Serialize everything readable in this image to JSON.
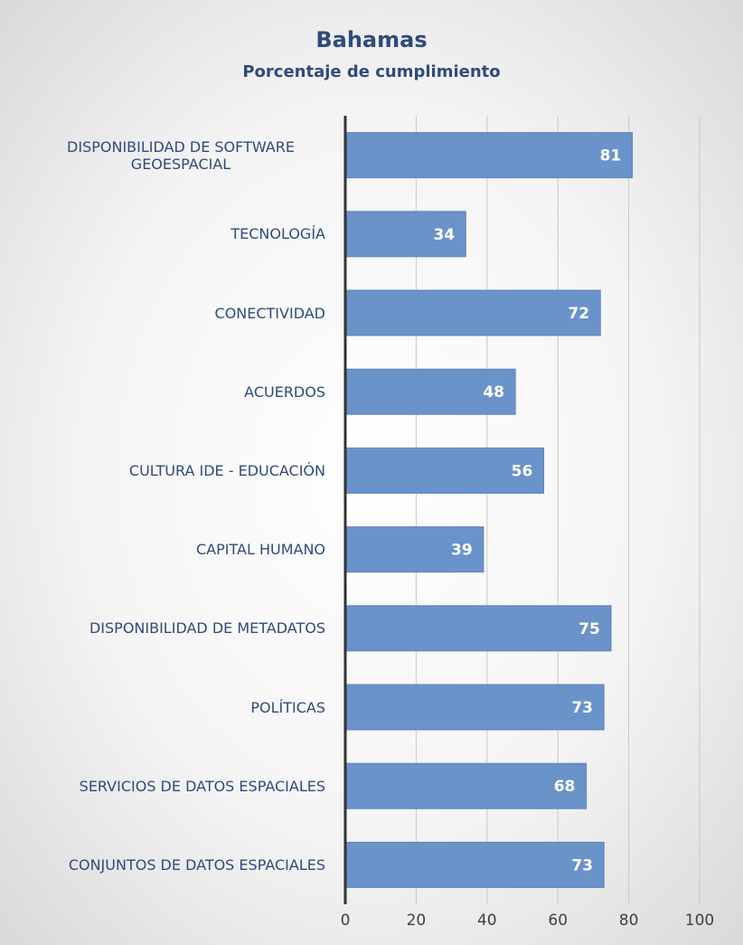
{
  "chart_data": {
    "type": "barh",
    "title": "Bahamas",
    "subtitle": "Porcentaje de cumplimiento",
    "categories": [
      "DISPONIBILIDAD DE SOFTWARE GEOESPACIAL",
      "TECNOLOGÍA",
      "CONECTIVIDAD",
      "ACUERDOS",
      "CULTURA IDE - EDUCACIÓN",
      "CAPITAL HUMANO",
      "DISPONIBILIDAD DE METADATOS",
      "POLÍTICAS",
      "SERVICIOS DE DATOS ESPACIALES",
      "CONJUNTOS DE DATOS ESPACIALES"
    ],
    "values": [
      81,
      34,
      72,
      48,
      56,
      39,
      75,
      73,
      68,
      73
    ],
    "color": "#6a93c9",
    "xlim": [
      0,
      100
    ],
    "xticks": [
      0,
      20,
      40,
      60,
      80,
      100
    ],
    "grid": true
  }
}
